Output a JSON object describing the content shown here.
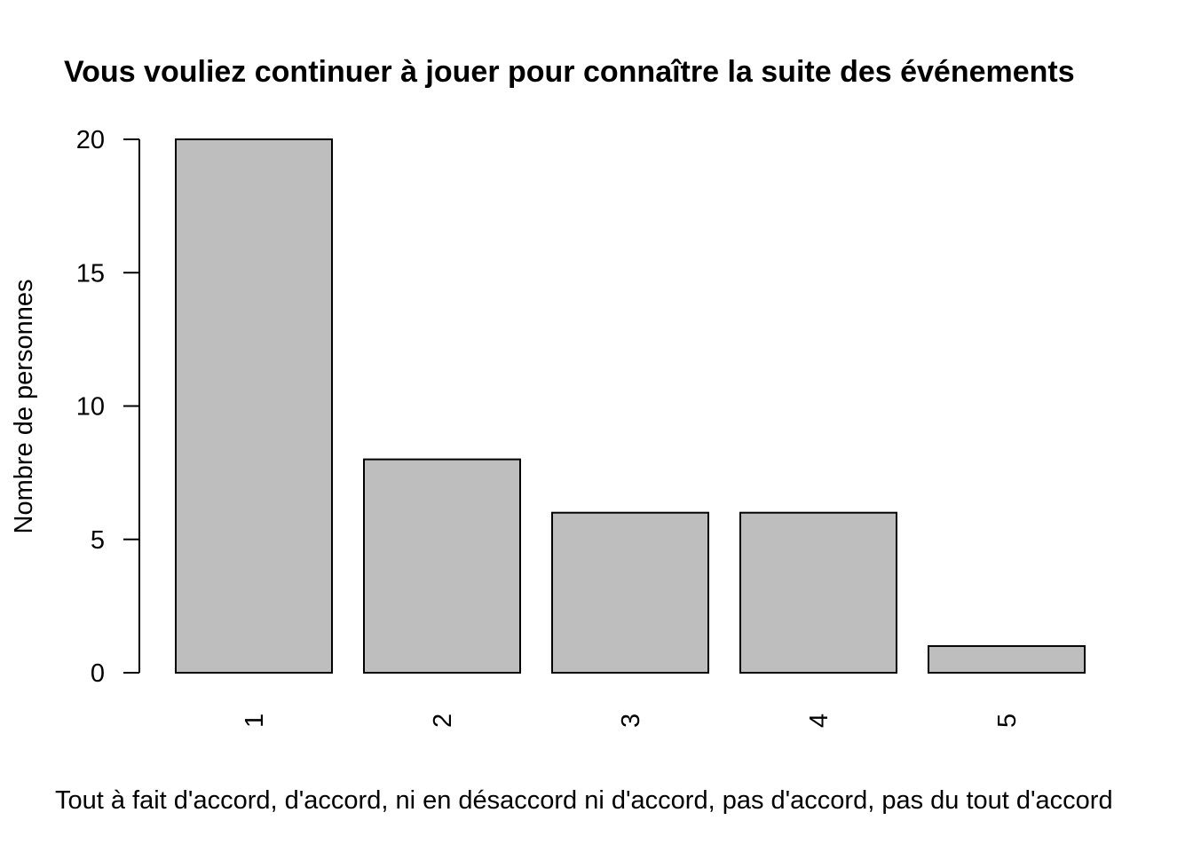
{
  "chart_data": {
    "type": "bar",
    "title": "Vous vouliez continuer à jouer pour connaître la suite des événements",
    "xlabel": "Tout à fait d'accord, d'accord, ni en désaccord ni d'accord, pas d'accord, pas du tout d'accord",
    "ylabel": "Nombre de personnes",
    "categories": [
      "1",
      "2",
      "3",
      "4",
      "5"
    ],
    "values": [
      20,
      8,
      6,
      6,
      1
    ],
    "ylim": [
      0,
      20
    ],
    "yticks": [
      0,
      5,
      10,
      15,
      20
    ],
    "ytick_labels": [
      "0",
      "5",
      "10",
      "15",
      "20"
    ],
    "grid": false,
    "legend": "none",
    "colors": {
      "bar_fill": "#bebebe",
      "bar_stroke": "#000000",
      "axis": "#000000",
      "background": "#ffffff"
    }
  }
}
